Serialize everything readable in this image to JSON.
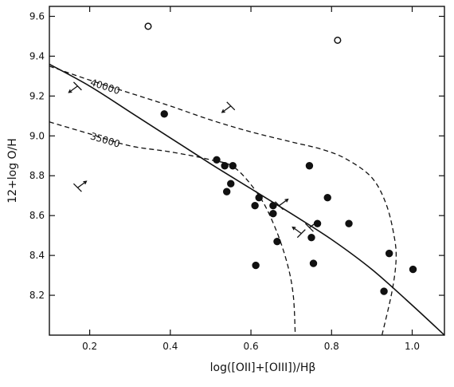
{
  "chart_data": {
    "type": "scatter",
    "title": "",
    "xlabel": "log([OII]+[OIII])/Hβ",
    "ylabel": "12+log O/H",
    "xlim": [
      0.1,
      1.08
    ],
    "ylim": [
      8.0,
      9.65
    ],
    "x_ticks": [
      0.2,
      0.4,
      0.6,
      0.8,
      1.0
    ],
    "x_tick_labels": [
      "0.2",
      "0.4",
      "0.6",
      "0.8",
      "1.0"
    ],
    "y_ticks": [
      8.2,
      8.4,
      8.6,
      8.8,
      9.0,
      9.2,
      9.4,
      9.6
    ],
    "y_tick_labels": [
      "8.2",
      "8.4",
      "8.6",
      "8.8",
      "9.0",
      "9.2",
      "9.4",
      "9.6"
    ],
    "grid": false,
    "series": [
      {
        "marker": "filled-circle",
        "points": [
          [
            0.385,
            9.11
          ],
          [
            0.515,
            8.88
          ],
          [
            0.535,
            8.85
          ],
          [
            0.555,
            8.85
          ],
          [
            0.54,
            8.72
          ],
          [
            0.55,
            8.76
          ],
          [
            0.61,
            8.65
          ],
          [
            0.62,
            8.69
          ],
          [
            0.655,
            8.65
          ],
          [
            0.655,
            8.61
          ],
          [
            0.665,
            8.47
          ],
          [
            0.612,
            8.35
          ],
          [
            0.745,
            8.85
          ],
          [
            0.75,
            8.49
          ],
          [
            0.765,
            8.56
          ],
          [
            0.755,
            8.36
          ],
          [
            0.79,
            8.69
          ],
          [
            0.843,
            8.56
          ],
          [
            0.93,
            8.22
          ],
          [
            0.943,
            8.41
          ],
          [
            1.002,
            8.33
          ]
        ]
      },
      {
        "marker": "open-circle",
        "points": [
          [
            0.345,
            9.55
          ],
          [
            0.815,
            9.48
          ]
        ]
      },
      {
        "marker": "limit-arrow",
        "points": [
          [
            0.17,
            9.25
          ],
          [
            0.55,
            9.15
          ],
          [
            0.17,
            8.74
          ],
          [
            0.67,
            8.65
          ],
          [
            0.745,
            8.54
          ],
          [
            0.725,
            8.51
          ]
        ],
        "directions": [
          "down-left",
          "down-left",
          "up-right",
          "up-right",
          "up-right",
          "up-left"
        ]
      }
    ],
    "curves": [
      {
        "style": "solid",
        "points": [
          [
            0.1,
            9.36
          ],
          [
            0.2,
            9.25
          ],
          [
            0.3,
            9.12
          ],
          [
            0.4,
            8.99
          ],
          [
            0.5,
            8.86
          ],
          [
            0.6,
            8.735
          ],
          [
            0.7,
            8.61
          ],
          [
            0.8,
            8.48
          ],
          [
            0.9,
            8.33
          ],
          [
            1.0,
            8.15
          ],
          [
            1.08,
            8.0
          ]
        ]
      },
      {
        "style": "dashed",
        "label": "40000",
        "points": [
          [
            0.1,
            9.35
          ],
          [
            0.2,
            9.28
          ],
          [
            0.3,
            9.215
          ],
          [
            0.4,
            9.15
          ],
          [
            0.5,
            9.08
          ],
          [
            0.6,
            9.02
          ],
          [
            0.7,
            8.97
          ],
          [
            0.78,
            8.93
          ],
          [
            0.84,
            8.88
          ],
          [
            0.9,
            8.79
          ],
          [
            0.935,
            8.66
          ],
          [
            0.955,
            8.5
          ],
          [
            0.96,
            8.38
          ],
          [
            0.95,
            8.22
          ],
          [
            0.925,
            8.0
          ]
        ]
      },
      {
        "style": "dashed",
        "label": "35000",
        "points": [
          [
            0.1,
            9.07
          ],
          [
            0.2,
            9.01
          ],
          [
            0.3,
            8.95
          ],
          [
            0.4,
            8.92
          ],
          [
            0.5,
            8.88
          ],
          [
            0.56,
            8.84
          ],
          [
            0.62,
            8.7
          ],
          [
            0.66,
            8.54
          ],
          [
            0.69,
            8.36
          ],
          [
            0.705,
            8.2
          ],
          [
            0.71,
            8.0
          ]
        ]
      }
    ]
  }
}
